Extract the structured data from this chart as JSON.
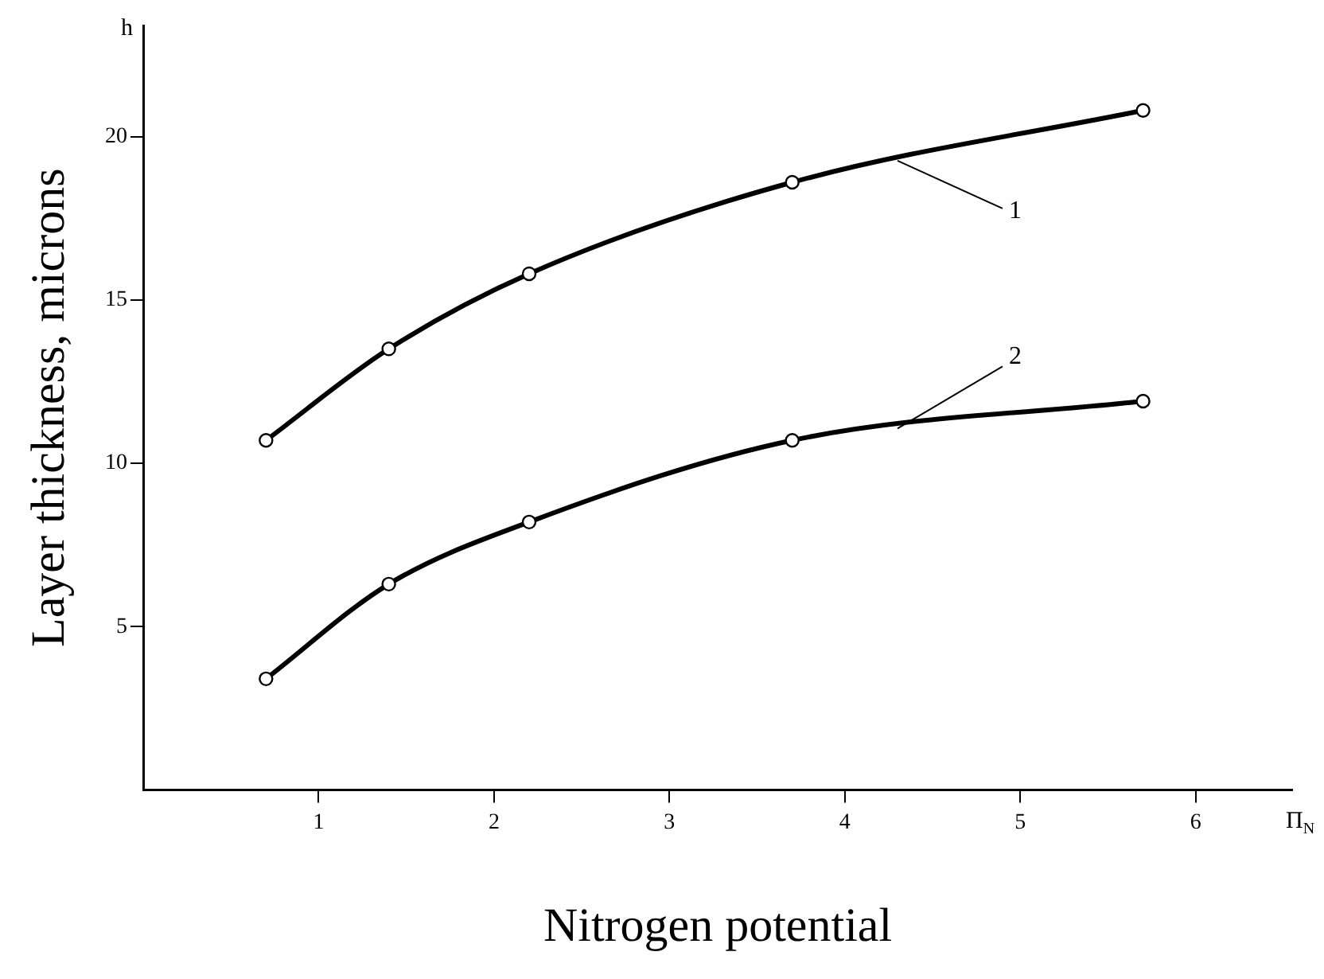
{
  "chart_data": {
    "type": "line",
    "xlabel": "Nitrogen potential",
    "ylabel": "Layer thickness, microns",
    "annotations": [
      "h",
      "Π$_{N}$"
    ],
    "xlim": [
      0,
      6.55
    ],
    "xticks": [
      1,
      2,
      3,
      4,
      5,
      6
    ],
    "ylim": [
      0,
      23.4
    ],
    "yticks": [
      5,
      10,
      15,
      20
    ],
    "grid": false,
    "legend": false,
    "marker": "circle",
    "line_style": "solid",
    "series": [
      {
        "name": "1",
        "color": "#000000",
        "x": [
          0.7,
          1.4,
          2.2,
          3.7,
          5.7
        ],
        "values": [
          10.7,
          13.5,
          15.8,
          18.6,
          20.8
        ]
      },
      {
        "name": "2",
        "color": "#000000",
        "x": [
          0.7,
          1.4,
          2.2,
          3.7,
          5.7
        ],
        "values": [
          3.4,
          6.3,
          8.2,
          10.7,
          11.9
        ]
      }
    ]
  }
}
